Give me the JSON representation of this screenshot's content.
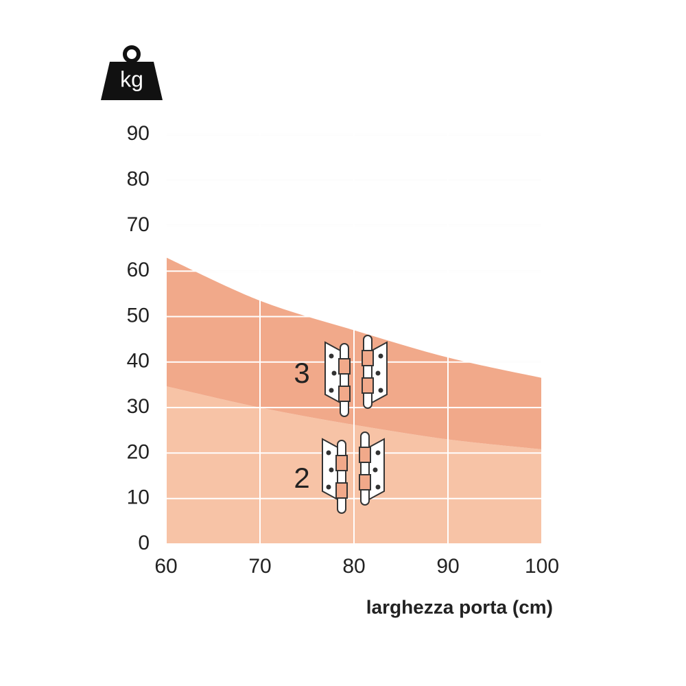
{
  "chart_data": {
    "type": "area",
    "stacked": true,
    "x": [
      60,
      70,
      80,
      90,
      100
    ],
    "series": [
      {
        "name": "2",
        "color": "#f7c3a6",
        "values": [
          34.7,
          30,
          26.2,
          23,
          20.8
        ]
      },
      {
        "name": "3",
        "color": "#f1a98a",
        "values": [
          28.3,
          23.5,
          20.8,
          18,
          15.7
        ]
      }
    ],
    "xlabel": "larghezza porta (cm)",
    "ylabel": "kg",
    "xlim": [
      60,
      100
    ],
    "xticks": [
      60,
      70,
      80,
      90,
      100
    ],
    "ylim": [
      0,
      100
    ],
    "yticks": [
      0,
      10,
      20,
      30,
      40,
      50,
      60,
      70,
      80,
      90
    ],
    "grid": true
  }
}
